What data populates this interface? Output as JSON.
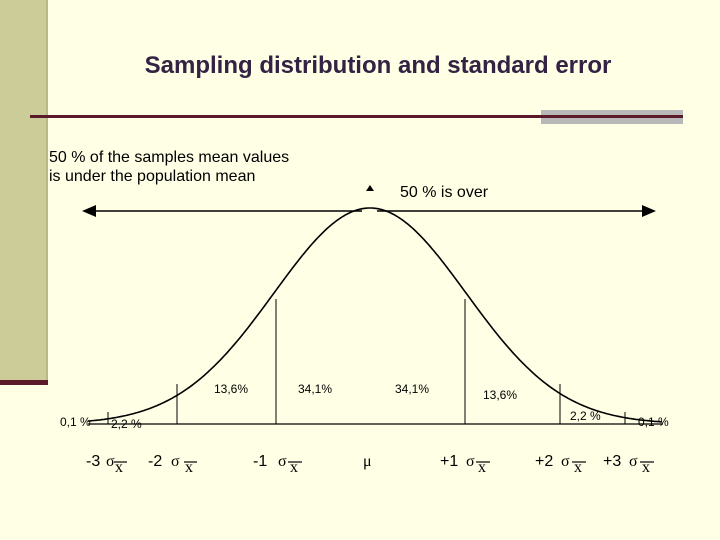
{
  "title": "Sampling distribution and standard error",
  "left_caption": [
    "50 % of the samples mean values",
    "is under the population mean"
  ],
  "right_caption": "50 % is over",
  "percent_labels": [
    "0,1 %",
    "2,2 %",
    "13,6%",
    "34,1%",
    "34,1%",
    "13,6%",
    "2,2 %",
    "0,1 %"
  ],
  "x_labels": [
    {
      "prefix": "-3",
      "sigma": "σ",
      "sub": "x"
    },
    {
      "prefix": "-2",
      "sigma": "σ",
      "sub": "x"
    },
    {
      "prefix": "-1",
      "sigma": "σ",
      "sub": "x"
    },
    {
      "prefix": "",
      "sigma": "μ",
      "sub": ""
    },
    {
      "prefix": "+1",
      "sigma": "σ",
      "sub": "x"
    },
    {
      "prefix": "+2",
      "sigma": "σ",
      "sub": "x"
    },
    {
      "prefix": "+3",
      "sigma": "σ",
      "sub": "x"
    }
  ],
  "colors": {
    "background": "#ffffe6",
    "sidebar": "#cccc99",
    "rule": "#5a1a2a",
    "accent": "#b8b8b8",
    "title": "#332244"
  }
}
